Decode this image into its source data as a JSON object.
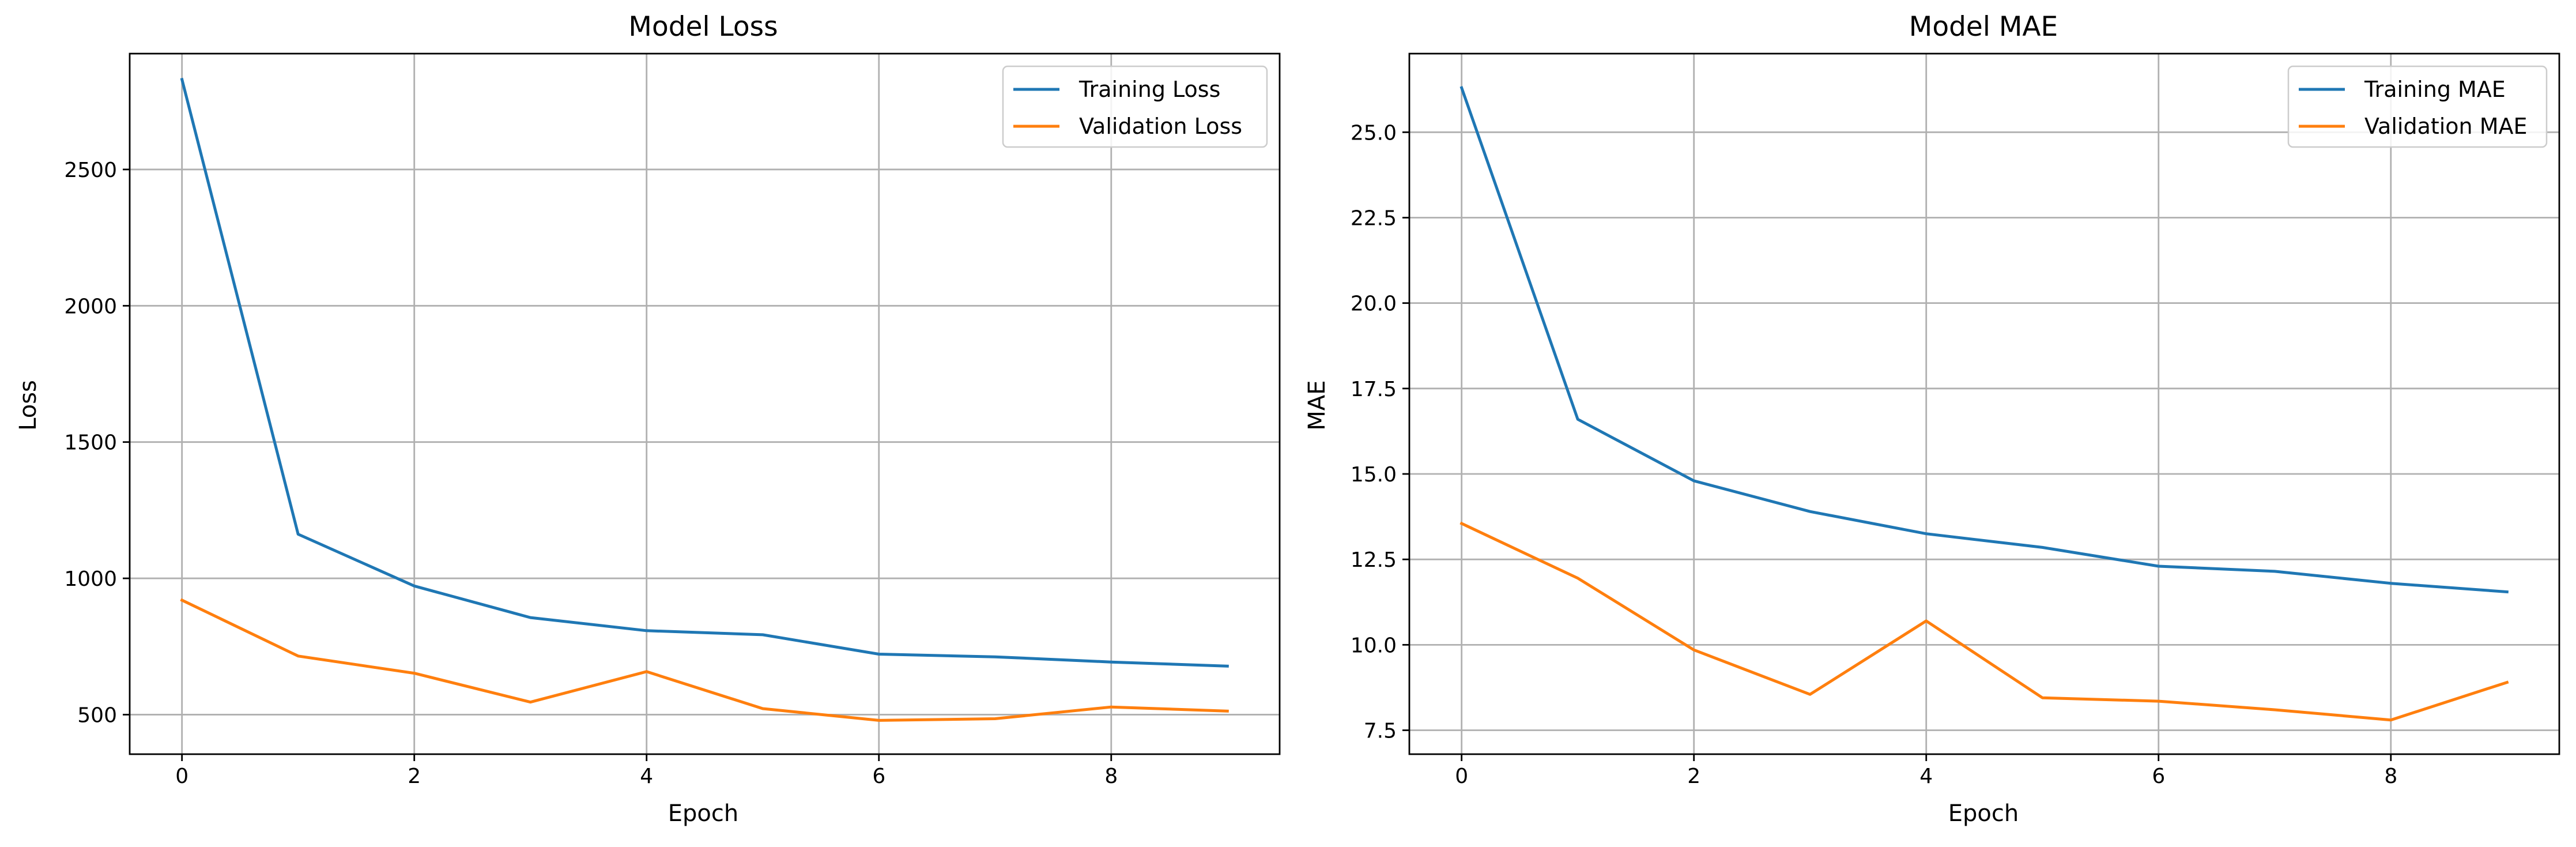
{
  "chart_data": [
    {
      "type": "line",
      "title": "Model Loss",
      "xlabel": "Epoch",
      "ylabel": "Loss",
      "xlim": [
        -0.45,
        9.45
      ],
      "ylim": [
        355,
        2925
      ],
      "xticks": [
        0,
        2,
        4,
        6,
        8
      ],
      "yticks": [
        500,
        1000,
        1500,
        2000,
        2500
      ],
      "grid": true,
      "legend_position": "top-right",
      "x": [
        0,
        1,
        2,
        3,
        4,
        5,
        6,
        7,
        8,
        9
      ],
      "series": [
        {
          "name": "Training Loss",
          "color": "#1f77b4",
          "values": [
            2830,
            1162,
            972,
            856,
            808,
            793,
            722,
            712,
            693,
            678
          ]
        },
        {
          "name": "Validation Loss",
          "color": "#ff7f0e",
          "values": [
            920,
            715,
            652,
            546,
            658,
            522,
            479,
            485,
            528,
            513
          ]
        }
      ]
    },
    {
      "type": "line",
      "title": "Model MAE",
      "xlabel": "Epoch",
      "ylabel": "MAE",
      "xlim": [
        -0.45,
        9.45
      ],
      "ylim": [
        6.8,
        27.3
      ],
      "xticks": [
        0,
        2,
        4,
        6,
        8
      ],
      "yticks": [
        7.5,
        10.0,
        12.5,
        15.0,
        17.5,
        20.0,
        22.5,
        25.0
      ],
      "grid": true,
      "legend_position": "top-right",
      "x": [
        0,
        1,
        2,
        3,
        4,
        5,
        6,
        7,
        8,
        9
      ],
      "series": [
        {
          "name": "Training MAE",
          "color": "#1f77b4",
          "values": [
            26.3,
            16.6,
            14.8,
            13.9,
            13.25,
            12.85,
            12.3,
            12.15,
            11.8,
            11.55
          ]
        },
        {
          "name": "Validation MAE",
          "color": "#ff7f0e",
          "values": [
            13.55,
            11.95,
            9.85,
            8.55,
            10.7,
            8.45,
            8.35,
            8.1,
            7.8,
            8.9
          ]
        }
      ]
    }
  ]
}
